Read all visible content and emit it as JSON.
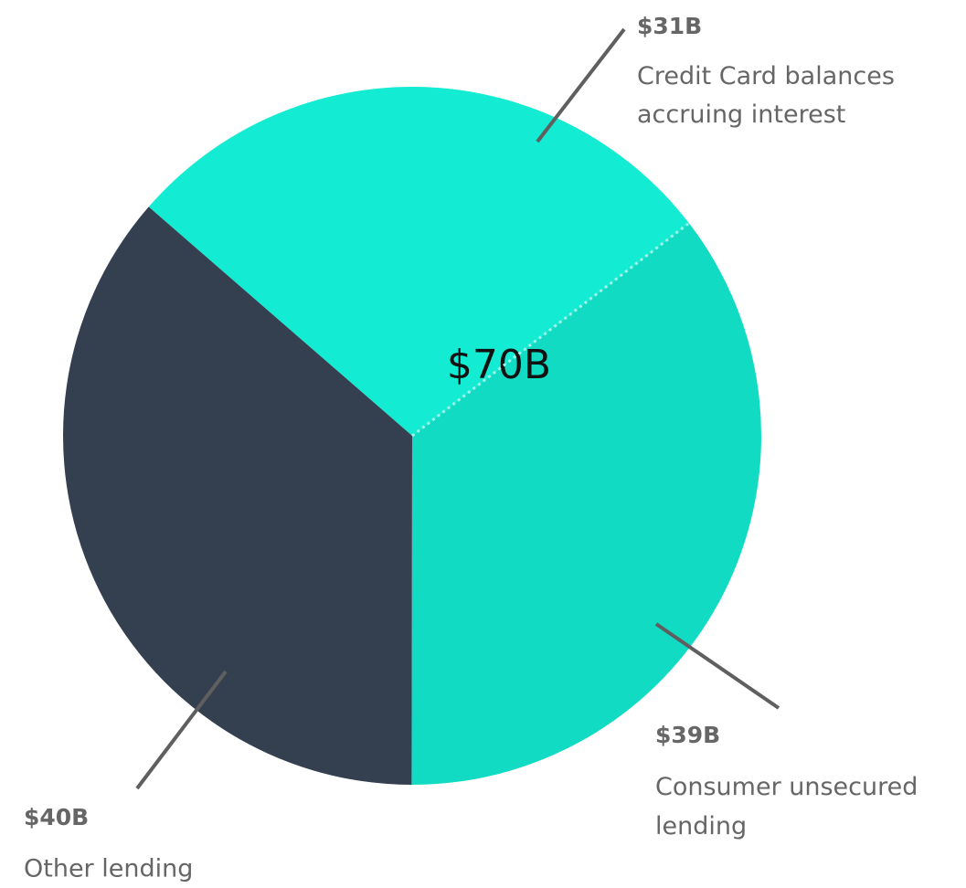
{
  "chart_data": {
    "type": "pie",
    "categories": [
      "Credit Card balances accruing interest",
      "Consumer unsecured lending",
      "Other lending"
    ],
    "values": [
      31,
      39,
      40
    ],
    "value_labels": [
      "$31B",
      "$39B",
      "$40B"
    ],
    "colors": [
      "#14ebd3",
      "#12dbc4",
      "#344050"
    ],
    "center_label": "$70B"
  }
}
